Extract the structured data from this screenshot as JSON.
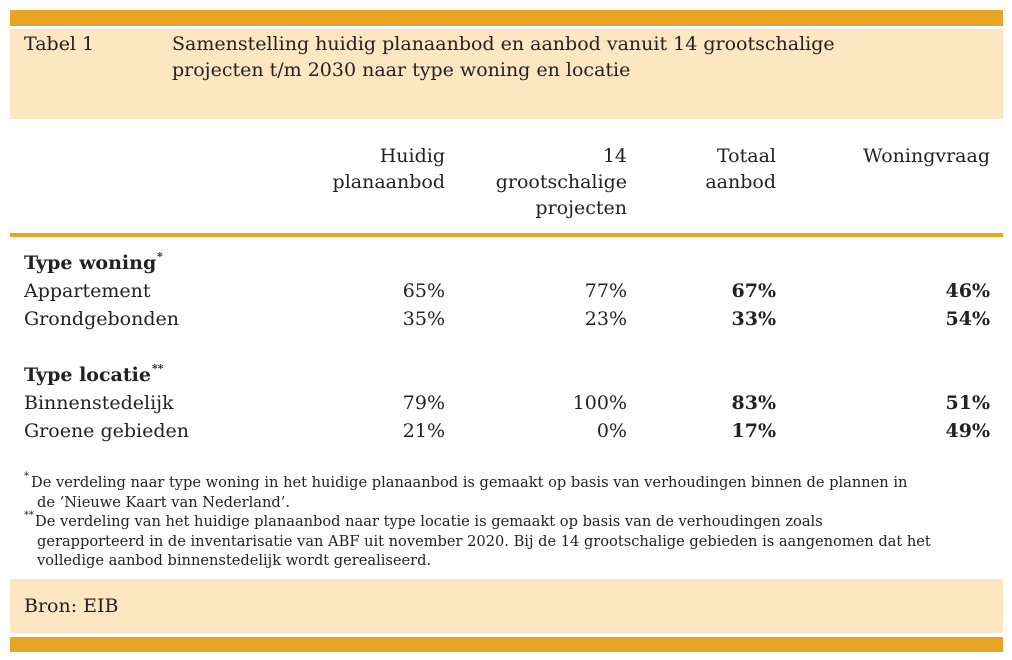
{
  "caption": {
    "label": "Tabel 1",
    "title_lines": [
      "Samenstelling huidig planaanbod en aanbod vanuit 14 grootschalige",
      "projecten t/m 2030 naar type woning en locatie"
    ]
  },
  "table": {
    "columns": [
      [
        "Huidig",
        "planaanbod"
      ],
      [
        "14",
        "grootschalige",
        "projecten"
      ],
      [
        "Totaal",
        "aanbod"
      ],
      [
        "Woningvraag"
      ]
    ],
    "groups": [
      {
        "title": "Type woning",
        "marker": "*",
        "rows": [
          {
            "label": "Appartement",
            "cells": [
              "65%",
              "77%",
              "67%",
              "46%"
            ]
          },
          {
            "label": "Grondgebonden",
            "cells": [
              "35%",
              "23%",
              "33%",
              "54%"
            ]
          }
        ]
      },
      {
        "title": "Type locatie",
        "marker": "**",
        "rows": [
          {
            "label": "Binnenstedelijk",
            "cells": [
              "79%",
              "100%",
              "83%",
              "51%"
            ]
          },
          {
            "label": "Groene gebieden",
            "cells": [
              "21%",
              "0%",
              "17%",
              "49%"
            ]
          }
        ]
      }
    ]
  },
  "notes": [
    {
      "marker": "*",
      "lines": [
        "De verdeling naar type woning in het huidige planaanbod is gemaakt op basis van verhoudingen binnen de plannen in",
        "de ‘Nieuwe Kaart van Nederland’."
      ]
    },
    {
      "marker": "**",
      "lines": [
        "De verdeling van het huidige planaanbod naar type locatie is gemaakt op basis van de verhoudingen zoals",
        "gerapporteerd in de inventarisatie van ABF uit november 2020. Bij de 14 grootschalige gebieden is aangenomen dat het",
        "volledige aanbod binnenstedelijk wordt gerealiseerd."
      ]
    }
  ],
  "source": "Bron: EIB"
}
